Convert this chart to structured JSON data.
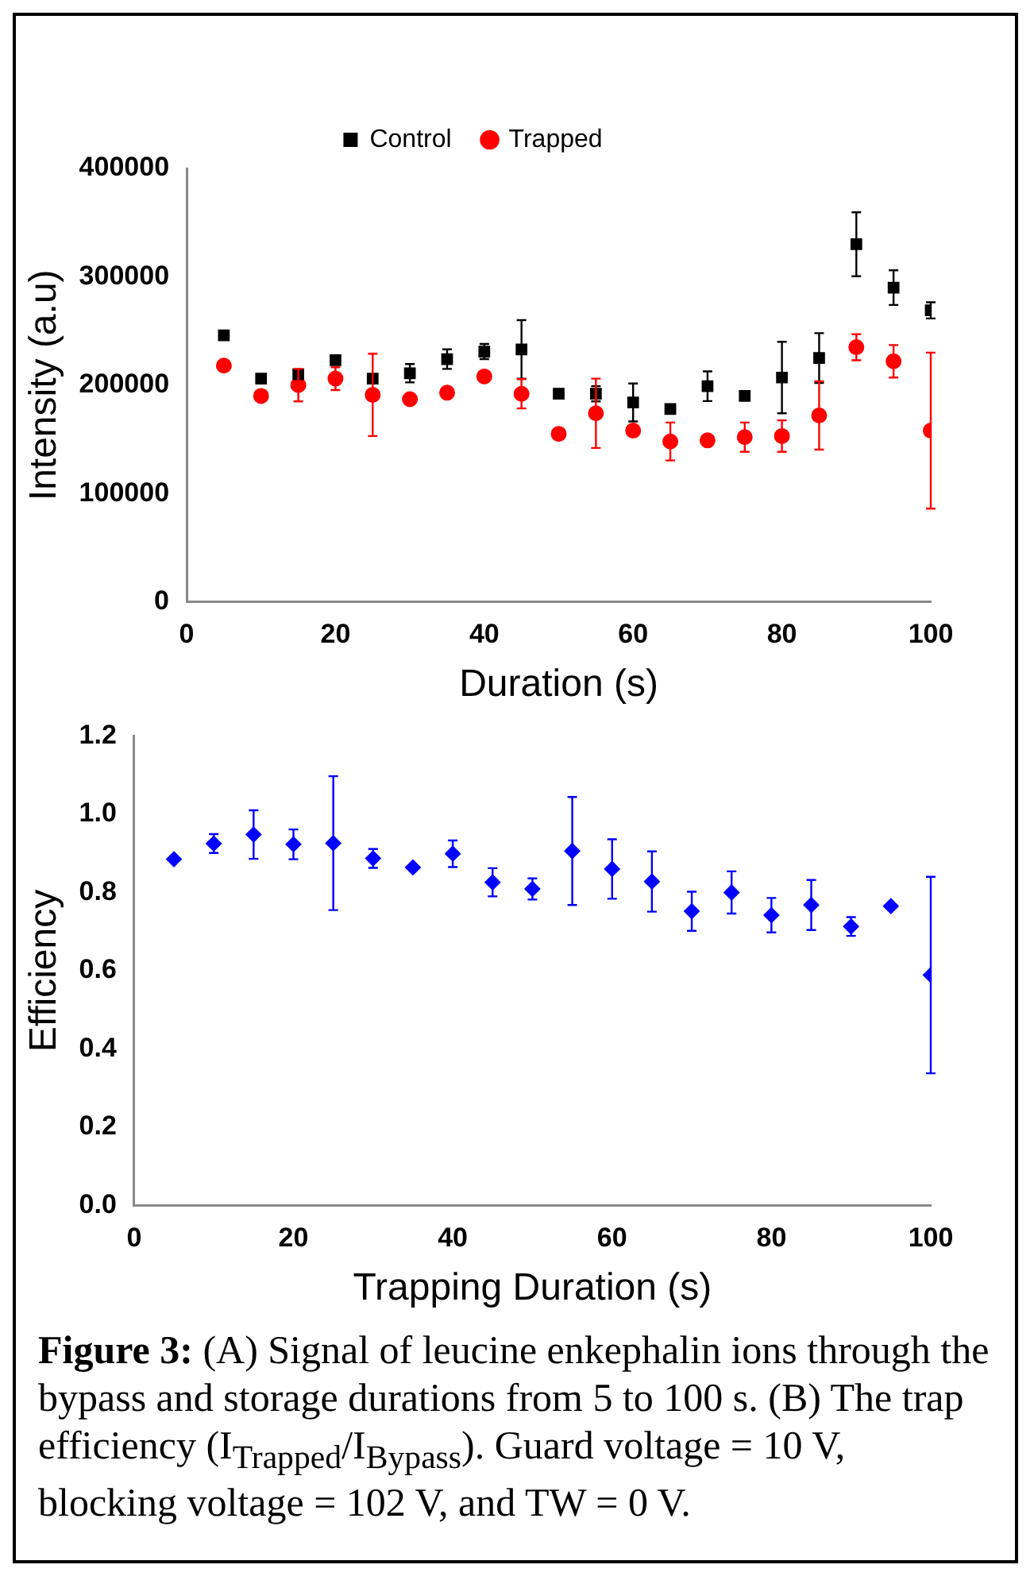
{
  "chart_data": [
    {
      "type": "scatter",
      "ylabel": "Intensity (a.u)",
      "xlabel": "Duration (s)",
      "x": [
        5,
        10,
        15,
        20,
        25,
        30,
        35,
        40,
        45,
        50,
        55,
        60,
        65,
        70,
        75,
        80,
        85,
        90,
        95,
        100
      ],
      "xlim": [
        0,
        100
      ],
      "xticks": [
        0,
        20,
        40,
        60,
        80,
        100
      ],
      "ylim": [
        0,
        400000
      ],
      "yticks": [
        0,
        100000,
        200000,
        300000,
        400000
      ],
      "grid": false,
      "legend": "top",
      "series": [
        {
          "name": "Control",
          "color": "#000000",
          "marker": "square",
          "values": [
            246000,
            206000,
            210000,
            223000,
            206000,
            211000,
            224000,
            231000,
            233000,
            192000,
            192000,
            184000,
            178000,
            199000,
            190000,
            207000,
            225000,
            330000,
            290000,
            269000
          ],
          "errors": [
            null,
            null,
            null,
            null,
            null,
            8500,
            9000,
            7000,
            27000,
            null,
            7000,
            17500,
            null,
            13700,
            null,
            33000,
            23000,
            29500,
            16000,
            7500
          ]
        },
        {
          "name": "Trapped",
          "color": "#ff0000",
          "marker": "circle",
          "values": [
            218000,
            190000,
            200000,
            206000,
            191000,
            187000,
            193000,
            208000,
            192000,
            155000,
            174000,
            158000,
            148000,
            149000,
            152000,
            153000,
            172000,
            235000,
            222000,
            158000
          ],
          "errors": [
            null,
            null,
            15000,
            10500,
            38000,
            null,
            null,
            null,
            13500,
            null,
            32000,
            null,
            17500,
            null,
            13500,
            14500,
            31500,
            12000,
            15000,
            72000
          ]
        }
      ]
    },
    {
      "type": "scatter",
      "ylabel": "Efficiency",
      "xlabel": "Trapping Duration (s)",
      "x": [
        5,
        10,
        15,
        20,
        25,
        30,
        35,
        40,
        45,
        50,
        55,
        60,
        65,
        70,
        75,
        80,
        85,
        90,
        95,
        100
      ],
      "xlim": [
        0,
        100
      ],
      "xticks": [
        0,
        20,
        40,
        60,
        80,
        100
      ],
      "ylim": [
        0,
        1.2
      ],
      "yticks": [
        {
          "value": 0,
          "label": "0.0"
        },
        0.2,
        0.4,
        0.6,
        0.8,
        {
          "value": 1,
          "label": "1.0"
        },
        1.2
      ],
      "grid": false,
      "legend": false,
      "series": [
        {
          "color": "#0000ff",
          "marker": "diamond",
          "values": [
            0.885,
            0.925,
            0.948,
            0.923,
            0.926,
            0.887,
            0.864,
            0.899,
            0.826,
            0.809,
            0.906,
            0.86,
            0.828,
            0.752,
            0.8,
            0.742,
            0.768,
            0.713,
            0.765,
            0.589
          ],
          "errors": [
            null,
            0.024,
            0.062,
            0.038,
            0.171,
            0.024,
            null,
            0.034,
            0.036,
            0.027,
            0.138,
            0.076,
            0.077,
            0.05,
            0.054,
            0.044,
            0.064,
            0.024,
            null,
            0.251
          ]
        }
      ],
      "annotations": [
        "Figure 3:",
        " (A) Signal of leucine enkephalin ions through the bypass and storage durations from 5 to 100 s. (B) The trap efficiency (I$_{Trapped}$/I$_{Bypass}$). Guard voltage = 10 V, blocking voltage = 102 V, and TW = 0 V."
      ]
    }
  ]
}
